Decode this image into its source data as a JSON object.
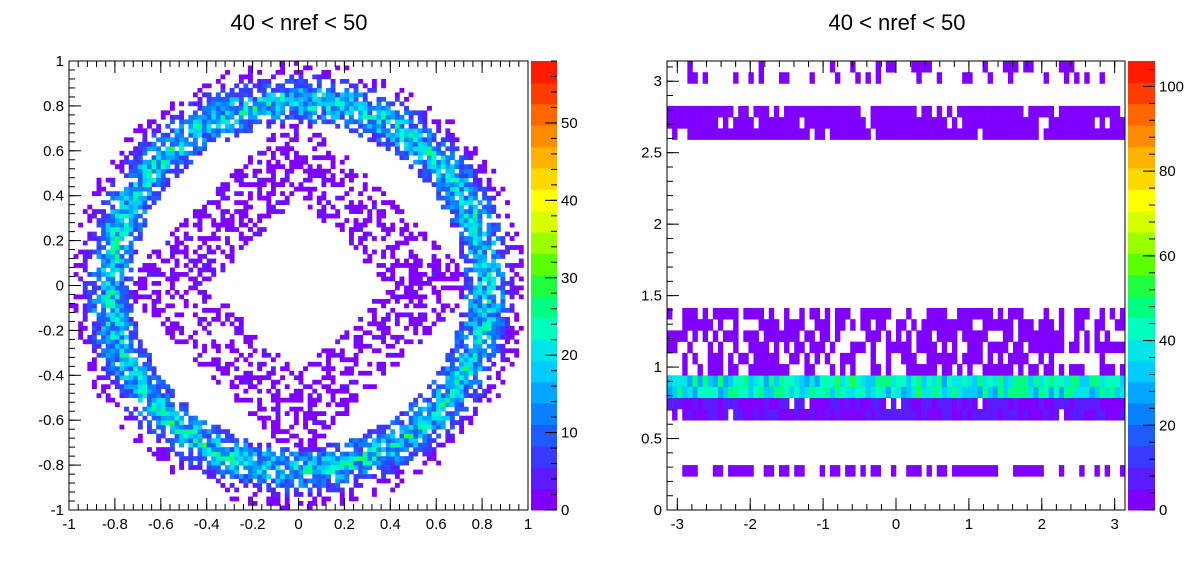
{
  "colors": {
    "palette": [
      "#7f00ff",
      "#5a1cff",
      "#3a3aff",
      "#1f5aff",
      "#0a80ff",
      "#00a6ff",
      "#00ccff",
      "#00e6e6",
      "#00ffbf",
      "#00ff80",
      "#1fff40",
      "#5aff00",
      "#9cff00",
      "#d8ff00",
      "#ffff00",
      "#ffd800",
      "#ffb300",
      "#ff8c00",
      "#ff6600",
      "#ff3c00",
      "#ff1a00"
    ],
    "background": "#ffffff",
    "axis": "#000000"
  },
  "chart_data": [
    {
      "type": "heatmap",
      "title": "40 < nref < 50",
      "xlabel": "",
      "ylabel": "",
      "xlim": [
        -1,
        1
      ],
      "ylim": [
        -1,
        1
      ],
      "x_ticks": [
        -1,
        -0.8,
        -0.6,
        -0.4,
        -0.2,
        0,
        0.2,
        0.4,
        0.6,
        0.8,
        1
      ],
      "y_ticks": [
        -1,
        -0.8,
        -0.6,
        -0.4,
        -0.2,
        0,
        0.2,
        0.4,
        0.6,
        0.8,
        1
      ],
      "x_tick_labels": [
        "-1",
        "-0.8",
        "-0.6",
        "-0.4",
        "-0.2",
        "0",
        "0.2",
        "0.4",
        "0.6",
        "0.8",
        "1"
      ],
      "y_tick_labels": [
        "-1",
        "-0.8",
        "-0.6",
        "-0.4",
        "-0.2",
        "0",
        "0.2",
        "0.4",
        "0.6",
        "0.8",
        "1"
      ],
      "bins": [
        100,
        100
      ],
      "z_range": [
        0,
        58
      ],
      "z_ticks": [
        0,
        10,
        20,
        30,
        40,
        50
      ],
      "z_tick_labels": [
        "0",
        "10",
        "20",
        "30",
        "40",
        "50"
      ],
      "grid": false,
      "description_of_structure": {
        "outer_ring": {
          "r_min": 0.72,
          "r_max": 0.98,
          "peak_r": 0.82,
          "peak_value": 22
        },
        "inner_diamond": {
          "l1_min": 0.4,
          "l1_max": 0.78,
          "density": 0.45,
          "value": 1
        },
        "hole": {
          "l1_max": 0.4
        }
      }
    },
    {
      "type": "heatmap",
      "title": "40 < nref < 50",
      "xlabel": "",
      "ylabel": "",
      "xlim": [
        -3.14159,
        3.14159
      ],
      "ylim": [
        0,
        3.14159
      ],
      "x_ticks": [
        -3,
        -2,
        -1,
        0,
        1,
        2,
        3
      ],
      "y_ticks": [
        0,
        0.5,
        1,
        1.5,
        2,
        2.5,
        3
      ],
      "x_tick_labels": [
        "-3",
        "-2",
        "-1",
        "0",
        "1",
        "2",
        "3"
      ],
      "y_tick_labels": [
        "0",
        "0.5",
        "1",
        "1.5",
        "2",
        "2.5",
        "3"
      ],
      "bins": [
        90,
        40
      ],
      "z_range": [
        0,
        106
      ],
      "z_ticks": [
        0,
        20,
        40,
        60,
        80,
        100
      ],
      "z_tick_labels": [
        "0",
        "20",
        "40",
        "60",
        "80",
        "100"
      ],
      "grid": false,
      "bands": [
        {
          "y_min": 0.2,
          "y_max": 0.35,
          "density": 0.55,
          "value": 2
        },
        {
          "y_min": 0.65,
          "y_max": 0.8,
          "density": 0.95,
          "value": 8
        },
        {
          "y_min": 0.8,
          "y_max": 0.95,
          "density": 1.0,
          "value": 38
        },
        {
          "y_min": 0.95,
          "y_max": 1.45,
          "density": 0.6,
          "value": 3
        },
        {
          "y_min": 2.6,
          "y_max": 2.8,
          "density": 0.9,
          "value": 2
        },
        {
          "y_min": 2.95,
          "y_max": 3.14,
          "density": 0.25,
          "value": 1
        }
      ]
    }
  ]
}
